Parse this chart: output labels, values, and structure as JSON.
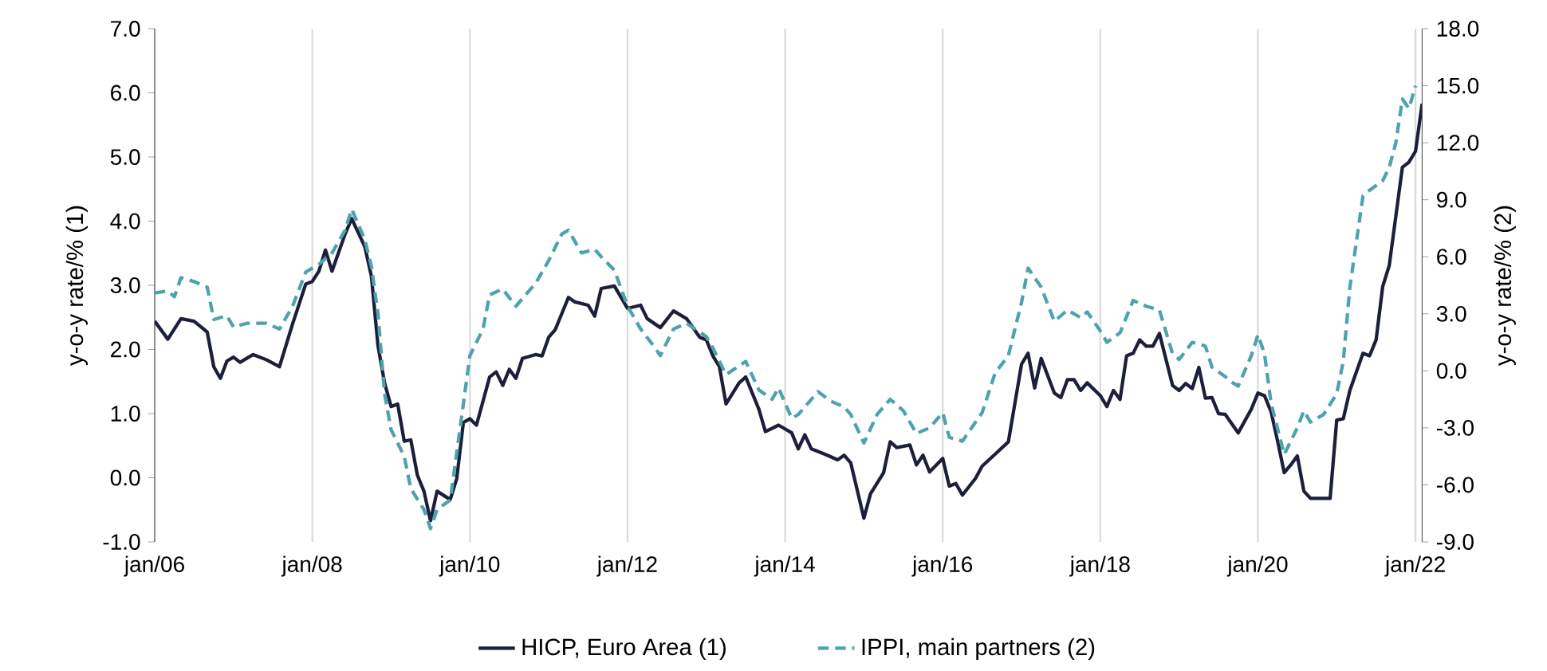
{
  "chart_data": {
    "type": "line",
    "ylabel": "y-o-y rate/% (1)",
    "y2label": "y-o-y rate/% (2)",
    "xlim": [
      "2006-01",
      "2022-02"
    ],
    "xticks": [
      {
        "value": "2006-01",
        "label": "jan/06"
      },
      {
        "value": "2008-01",
        "label": "jan/08"
      },
      {
        "value": "2010-01",
        "label": "jan/10"
      },
      {
        "value": "2012-01",
        "label": "jan/12"
      },
      {
        "value": "2014-01",
        "label": "jan/14"
      },
      {
        "value": "2016-01",
        "label": "jan/16"
      },
      {
        "value": "2018-01",
        "label": "jan/18"
      },
      {
        "value": "2020-01",
        "label": "jan/20"
      },
      {
        "value": "2022-01",
        "label": "jan/22"
      }
    ],
    "ylim": [
      -1,
      7
    ],
    "yticks": [
      {
        "value": -1,
        "label": "-1.0"
      },
      {
        "value": 0,
        "label": "0.0"
      },
      {
        "value": 1,
        "label": "1.0"
      },
      {
        "value": 2,
        "label": "2.0"
      },
      {
        "value": 3,
        "label": "3.0"
      },
      {
        "value": 4,
        "label": "4.0"
      },
      {
        "value": 5,
        "label": "5.0"
      },
      {
        "value": 6,
        "label": "6.0"
      },
      {
        "value": 7,
        "label": "7.0"
      }
    ],
    "y2lim": [
      -9,
      18
    ],
    "y2ticks": [
      {
        "value": -9,
        "label": "-9.0"
      },
      {
        "value": -6,
        "label": "-6.0"
      },
      {
        "value": -3,
        "label": "-3.0"
      },
      {
        "value": 0,
        "label": "0.0"
      },
      {
        "value": 3,
        "label": "3.0"
      },
      {
        "value": 6,
        "label": "6.0"
      },
      {
        "value": 9,
        "label": "9.0"
      },
      {
        "value": 12,
        "label": "12.0"
      },
      {
        "value": 15,
        "label": "15.0"
      },
      {
        "value": 18,
        "label": "18.0"
      }
    ],
    "grid": "x",
    "legend": "bottom",
    "series": [
      {
        "name": "HICP, Euro Area (1)",
        "color": "#1b1f3b",
        "line_style": "solid",
        "x": [
          "2006-01",
          "2006-03",
          "2006-05",
          "2006-07",
          "2006-09",
          "2006-10",
          "2006-11",
          "2006-12",
          "2007-01",
          "2007-02",
          "2007-04",
          "2007-06",
          "2007-08",
          "2007-10",
          "2007-12",
          "2008-01",
          "2008-02",
          "2008-03",
          "2008-04",
          "2008-06",
          "2008-07",
          "2008-09",
          "2008-10",
          "2008-11",
          "2008-12",
          "2009-01",
          "2009-02",
          "2009-03",
          "2009-04",
          "2009-05",
          "2009-06",
          "2009-07",
          "2009-08",
          "2009-10",
          "2009-11",
          "2009-12",
          "2010-01",
          "2010-02",
          "2010-04",
          "2010-05",
          "2010-06",
          "2010-07",
          "2010-08",
          "2010-09",
          "2010-11",
          "2010-12",
          "2011-01",
          "2011-02",
          "2011-04",
          "2011-05",
          "2011-07",
          "2011-08",
          "2011-09",
          "2011-11",
          "2012-01",
          "2012-03",
          "2012-04",
          "2012-06",
          "2012-08",
          "2012-10",
          "2012-12",
          "2013-01",
          "2013-02",
          "2013-03",
          "2013-04",
          "2013-06",
          "2013-07",
          "2013-09",
          "2013-10",
          "2013-12",
          "2014-02",
          "2014-03",
          "2014-04",
          "2014-05",
          "2014-07",
          "2014-09",
          "2014-10",
          "2014-11",
          "2015-01",
          "2015-02",
          "2015-04",
          "2015-05",
          "2015-06",
          "2015-08",
          "2015-09",
          "2015-10",
          "2015-11",
          "2016-01",
          "2016-02",
          "2016-03",
          "2016-04",
          "2016-06",
          "2016-07",
          "2016-09",
          "2016-11",
          "2017-01",
          "2017-02",
          "2017-03",
          "2017-04",
          "2017-06",
          "2017-07",
          "2017-08",
          "2017-09",
          "2017-10",
          "2017-11",
          "2018-01",
          "2018-02",
          "2018-03",
          "2018-04",
          "2018-05",
          "2018-06",
          "2018-07",
          "2018-08",
          "2018-09",
          "2018-10",
          "2018-12",
          "2019-01",
          "2019-02",
          "2019-03",
          "2019-04",
          "2019-05",
          "2019-06",
          "2019-07",
          "2019-08",
          "2019-10",
          "2019-12",
          "2020-01",
          "2020-02",
          "2020-03",
          "2020-04",
          "2020-05",
          "2020-06",
          "2020-07",
          "2020-08",
          "2020-09",
          "2020-12",
          "2021-01",
          "2021-02",
          "2021-03",
          "2021-05",
          "2021-06",
          "2021-07",
          "2021-08",
          "2021-09",
          "2021-11",
          "2021-12",
          "2022-01",
          "2022-02"
        ],
        "values": [
          2.44,
          2.16,
          2.48,
          2.44,
          2.27,
          1.73,
          1.55,
          1.82,
          1.88,
          1.8,
          1.92,
          1.84,
          1.73,
          2.4,
          3.02,
          3.06,
          3.22,
          3.55,
          3.22,
          3.8,
          4.04,
          3.6,
          3.14,
          2.06,
          1.48,
          1.11,
          1.15,
          0.57,
          0.59,
          0.04,
          -0.21,
          -0.67,
          -0.21,
          -0.34,
          -0.01,
          0.86,
          0.92,
          0.82,
          1.57,
          1.65,
          1.44,
          1.69,
          1.55,
          1.86,
          1.92,
          1.9,
          2.19,
          2.31,
          2.81,
          2.74,
          2.69,
          2.52,
          2.95,
          2.99,
          2.64,
          2.69,
          2.48,
          2.34,
          2.6,
          2.48,
          2.19,
          2.15,
          1.9,
          1.73,
          1.15,
          1.48,
          1.57,
          1.07,
          0.72,
          0.82,
          0.7,
          0.45,
          0.67,
          0.45,
          0.37,
          0.28,
          0.35,
          0.23,
          -0.63,
          -0.25,
          0.08,
          0.56,
          0.47,
          0.51,
          0.2,
          0.35,
          0.09,
          0.3,
          -0.13,
          -0.09,
          -0.27,
          -0.01,
          0.18,
          0.37,
          0.56,
          1.77,
          1.94,
          1.4,
          1.86,
          1.32,
          1.25,
          1.53,
          1.53,
          1.36,
          1.48,
          1.28,
          1.11,
          1.36,
          1.22,
          1.9,
          1.94,
          2.15,
          2.05,
          2.05,
          2.25,
          1.44,
          1.36,
          1.47,
          1.39,
          1.72,
          1.24,
          1.25,
          1.0,
          0.99,
          0.7,
          1.07,
          1.32,
          1.28,
          1.03,
          0.57,
          0.08,
          0.2,
          0.34,
          -0.21,
          -0.32,
          -0.32,
          0.9,
          0.92,
          1.36,
          1.94,
          1.9,
          2.15,
          2.98,
          3.31,
          4.84,
          4.92,
          5.09,
          5.83
        ]
      },
      {
        "name": "IPPI, main partners (2)",
        "color": "#4da3ad",
        "line_style": "dashed",
        "axis": "y2",
        "x": [
          "2006-01",
          "2006-03",
          "2006-04",
          "2006-05",
          "2006-07",
          "2006-09",
          "2006-10",
          "2006-12",
          "2007-01",
          "2007-03",
          "2007-06",
          "2007-08",
          "2007-10",
          "2007-12",
          "2008-02",
          "2008-04",
          "2008-06",
          "2008-07",
          "2008-09",
          "2008-10",
          "2008-11",
          "2008-12",
          "2009-01",
          "2009-03",
          "2009-04",
          "2009-06",
          "2009-07",
          "2009-08",
          "2009-10",
          "2009-11",
          "2010-01",
          "2010-03",
          "2010-04",
          "2010-06",
          "2010-08",
          "2010-10",
          "2010-11",
          "2011-01",
          "2011-03",
          "2011-04",
          "2011-06",
          "2011-08",
          "2011-09",
          "2011-11",
          "2012-01",
          "2012-03",
          "2012-05",
          "2012-06",
          "2012-08",
          "2012-10",
          "2013-01",
          "2013-02",
          "2013-04",
          "2013-07",
          "2013-09",
          "2013-11",
          "2013-12",
          "2014-02",
          "2014-03",
          "2014-05",
          "2014-06",
          "2014-08",
          "2014-10",
          "2014-11",
          "2015-01",
          "2015-03",
          "2015-05",
          "2015-07",
          "2015-09",
          "2015-11",
          "2016-01",
          "2016-02",
          "2016-04",
          "2016-07",
          "2016-09",
          "2016-11",
          "2017-01",
          "2017-02",
          "2017-04",
          "2017-06",
          "2017-08",
          "2017-10",
          "2017-11",
          "2018-01",
          "2018-02",
          "2018-04",
          "2018-06",
          "2018-08",
          "2018-10",
          "2018-12",
          "2019-01",
          "2019-03",
          "2019-05",
          "2019-06",
          "2019-08",
          "2019-09",
          "2019-10",
          "2019-12",
          "2020-01",
          "2020-02",
          "2020-03",
          "2020-05",
          "2020-07",
          "2020-08",
          "2020-09",
          "2020-11",
          "2021-01",
          "2021-02",
          "2021-03",
          "2021-05",
          "2021-06",
          "2021-08",
          "2021-09",
          "2021-10",
          "2021-11",
          "2021-12",
          "2022-01"
        ],
        "values": [
          4.1,
          4.2,
          3.9,
          4.9,
          4.7,
          4.4,
          2.7,
          2.9,
          2.3,
          2.5,
          2.5,
          2.2,
          3.4,
          5.2,
          5.6,
          6.2,
          7.4,
          8.5,
          6.9,
          5.5,
          3.0,
          -1.2,
          -3.1,
          -4.5,
          -6.2,
          -7.3,
          -8.3,
          -7.3,
          -6.8,
          -4.3,
          0.8,
          2.2,
          4.0,
          4.3,
          3.4,
          4.2,
          4.6,
          5.8,
          7.2,
          7.4,
          6.2,
          6.4,
          6.0,
          5.3,
          3.4,
          2.2,
          1.3,
          0.8,
          2.2,
          2.5,
          1.8,
          1.2,
          -0.2,
          0.5,
          -1.0,
          -1.5,
          -0.9,
          -2.5,
          -2.3,
          -1.5,
          -1.1,
          -1.6,
          -1.9,
          -2.3,
          -3.8,
          -2.3,
          -1.5,
          -2.1,
          -3.3,
          -3.0,
          -2.2,
          -3.5,
          -3.7,
          -2.2,
          -0.1,
          0.8,
          3.6,
          5.4,
          4.4,
          2.6,
          3.2,
          2.8,
          3.1,
          2.1,
          1.5,
          2.0,
          3.7,
          3.4,
          3.2,
          0.9,
          0.6,
          1.5,
          1.3,
          0.2,
          -0.3,
          -0.6,
          -0.8,
          0.8,
          1.9,
          0.9,
          -1.7,
          -4.4,
          -3.0,
          -2.1,
          -2.7,
          -2.3,
          -1.2,
          0.5,
          4.4,
          9.2,
          9.5,
          10.0,
          10.7,
          12.0,
          14.3,
          13.8,
          15.0
        ]
      }
    ]
  }
}
